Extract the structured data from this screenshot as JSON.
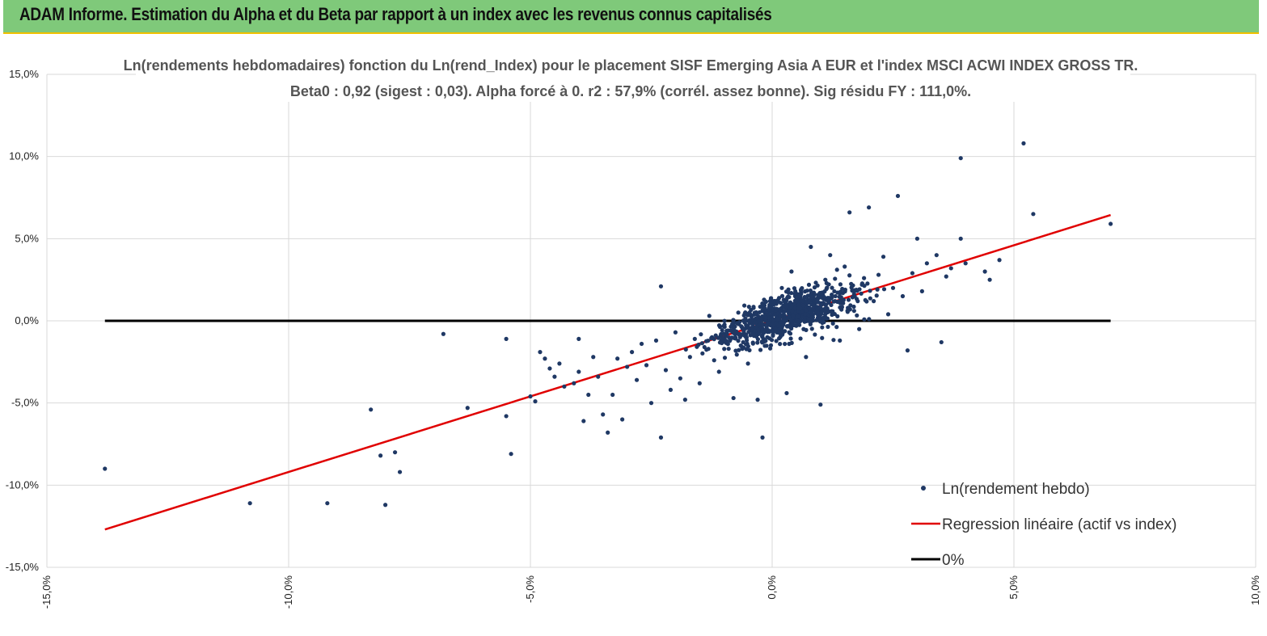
{
  "header": {
    "title": "ADAM Informe. Estimation du Alpha et du Beta par rapport à un index avec les revenus connus capitalisés"
  },
  "colors": {
    "banner": "#7fc97a",
    "banner_border": "#f0c000",
    "points": "#1f3864",
    "regression": "#e00000",
    "zero_line": "#000000",
    "grid": "#d9d9d9"
  },
  "chart_data": {
    "type": "scatter",
    "title": "Ln(rendements hebdomadaires) fonction du Ln(rend_Index) pour le placement SISF  Emerging Asia A EUR  et l'index MSCI ACWI INDEX GROSS TR.",
    "subtitle": "Beta0 : 0,92  (sigest : 0,03).  Alpha forcé à 0. r2 : 57,9% (corrél. assez bonne). Sig résidu FY : 111,0%.",
    "xlabel": "",
    "ylabel": "",
    "xlim": [
      -0.15,
      0.1
    ],
    "ylim": [
      -0.15,
      0.15
    ],
    "x_ticks": [
      -0.15,
      -0.1,
      -0.05,
      0.0,
      0.05,
      0.1
    ],
    "x_tick_labels": [
      "-15,0%",
      "-10,0%",
      "-5,0%",
      "0,0%",
      "5,0%",
      "10,0%"
    ],
    "y_ticks": [
      0.15,
      0.1,
      0.05,
      0.0,
      -0.05,
      -0.1,
      -0.15
    ],
    "y_tick_labels": [
      "15,0%",
      "10,0%",
      "5,0%",
      "0,0%",
      "-5,0%",
      "-10,0%",
      "-15,0%"
    ],
    "grid": true,
    "legend_position": "bottom-right",
    "series": [
      {
        "name": "Ln(rendement hebdo)",
        "kind": "scatter",
        "note_points_visible": "approx 1000 weekly observations; outliers listed explicitly, core cloud summarized by slope 0.92",
        "points": [
          [
            -0.138,
            -0.09
          ],
          [
            -0.108,
            -0.111
          ],
          [
            -0.092,
            -0.111
          ],
          [
            -0.083,
            -0.054
          ],
          [
            -0.081,
            -0.082
          ],
          [
            -0.08,
            -0.112
          ],
          [
            -0.078,
            -0.08
          ],
          [
            -0.077,
            -0.092
          ],
          [
            -0.068,
            -0.008
          ],
          [
            -0.063,
            -0.053
          ],
          [
            -0.055,
            -0.011
          ],
          [
            -0.055,
            -0.058
          ],
          [
            -0.054,
            -0.081
          ],
          [
            -0.05,
            -0.046
          ],
          [
            -0.049,
            -0.049
          ],
          [
            -0.048,
            -0.019
          ],
          [
            -0.047,
            -0.023
          ],
          [
            -0.046,
            -0.029
          ],
          [
            -0.045,
            -0.034
          ],
          [
            -0.044,
            -0.026
          ],
          [
            -0.043,
            -0.04
          ],
          [
            -0.041,
            -0.038
          ],
          [
            -0.04,
            -0.031
          ],
          [
            -0.04,
            -0.011
          ],
          [
            -0.039,
            -0.061
          ],
          [
            -0.038,
            -0.045
          ],
          [
            -0.037,
            -0.022
          ],
          [
            -0.036,
            -0.034
          ],
          [
            -0.035,
            -0.057
          ],
          [
            -0.034,
            -0.068
          ],
          [
            -0.033,
            -0.045
          ],
          [
            -0.032,
            -0.023
          ],
          [
            -0.031,
            -0.06
          ],
          [
            -0.03,
            -0.028
          ],
          [
            -0.029,
            -0.019
          ],
          [
            -0.028,
            -0.036
          ],
          [
            -0.027,
            -0.014
          ],
          [
            -0.026,
            -0.027
          ],
          [
            -0.025,
            -0.05
          ],
          [
            -0.024,
            -0.012
          ],
          [
            -0.023,
            -0.071
          ],
          [
            -0.023,
            0.021
          ],
          [
            -0.022,
            -0.03
          ],
          [
            -0.021,
            -0.042
          ],
          [
            -0.02,
            -0.007
          ],
          [
            -0.019,
            -0.035
          ],
          [
            -0.018,
            -0.048
          ],
          [
            -0.017,
            -0.022
          ],
          [
            -0.016,
            -0.011
          ],
          [
            -0.015,
            -0.038
          ],
          [
            -0.014,
            -0.016
          ],
          [
            -0.013,
            0.003
          ],
          [
            -0.012,
            -0.024
          ],
          [
            -0.011,
            -0.031
          ],
          [
            -0.01,
            -0.008
          ],
          [
            -0.009,
            -0.017
          ],
          [
            -0.008,
            -0.047
          ],
          [
            -0.007,
            0.005
          ],
          [
            -0.006,
            -0.013
          ],
          [
            -0.005,
            -0.026
          ],
          [
            -0.004,
            -0.002
          ],
          [
            -0.003,
            -0.048
          ],
          [
            -0.002,
            -0.071
          ],
          [
            -0.001,
            -0.01
          ],
          [
            0.0,
            0.012
          ],
          [
            0.001,
            -0.006
          ],
          [
            0.002,
            0.02
          ],
          [
            0.003,
            -0.044
          ],
          [
            0.004,
            0.03
          ],
          [
            0.005,
            0.002
          ],
          [
            0.006,
            0.017
          ],
          [
            0.007,
            -0.022
          ],
          [
            0.008,
            0.045
          ],
          [
            0.009,
            0.008
          ],
          [
            0.01,
            -0.051
          ],
          [
            0.011,
            0.025
          ],
          [
            0.012,
            0.04
          ],
          [
            0.013,
            0.012
          ],
          [
            0.014,
            -0.012
          ],
          [
            0.015,
            0.033
          ],
          [
            0.016,
            0.066
          ],
          [
            0.017,
            0.018
          ],
          [
            0.018,
            -0.005
          ],
          [
            0.019,
            0.026
          ],
          [
            0.02,
            0.069
          ],
          [
            0.021,
            0.012
          ],
          [
            0.022,
            0.028
          ],
          [
            0.023,
            0.039
          ],
          [
            0.024,
            0.004
          ],
          [
            0.025,
            0.02
          ],
          [
            0.026,
            0.076
          ],
          [
            0.027,
            0.015
          ],
          [
            0.028,
            -0.018
          ],
          [
            0.029,
            0.029
          ],
          [
            0.03,
            0.05
          ],
          [
            0.031,
            0.018
          ],
          [
            0.032,
            0.035
          ],
          [
            0.034,
            0.04
          ],
          [
            0.035,
            -0.013
          ],
          [
            0.036,
            0.027
          ],
          [
            0.037,
            0.032
          ],
          [
            0.039,
            0.05
          ],
          [
            0.039,
            0.099
          ],
          [
            0.04,
            0.035
          ],
          [
            0.044,
            0.03
          ],
          [
            0.045,
            0.025
          ],
          [
            0.047,
            0.037
          ],
          [
            0.052,
            0.108
          ],
          [
            0.054,
            0.065
          ],
          [
            0.07,
            0.059
          ]
        ]
      },
      {
        "name": "Regression linéaire (actif vs index)",
        "kind": "line",
        "slope": 0.92,
        "intercept": 0.0,
        "x_range": [
          -0.138,
          0.07
        ]
      },
      {
        "name": "0%",
        "kind": "line",
        "slope": 0.0,
        "intercept": 0.0,
        "x_range": [
          -0.138,
          0.07
        ]
      }
    ]
  }
}
